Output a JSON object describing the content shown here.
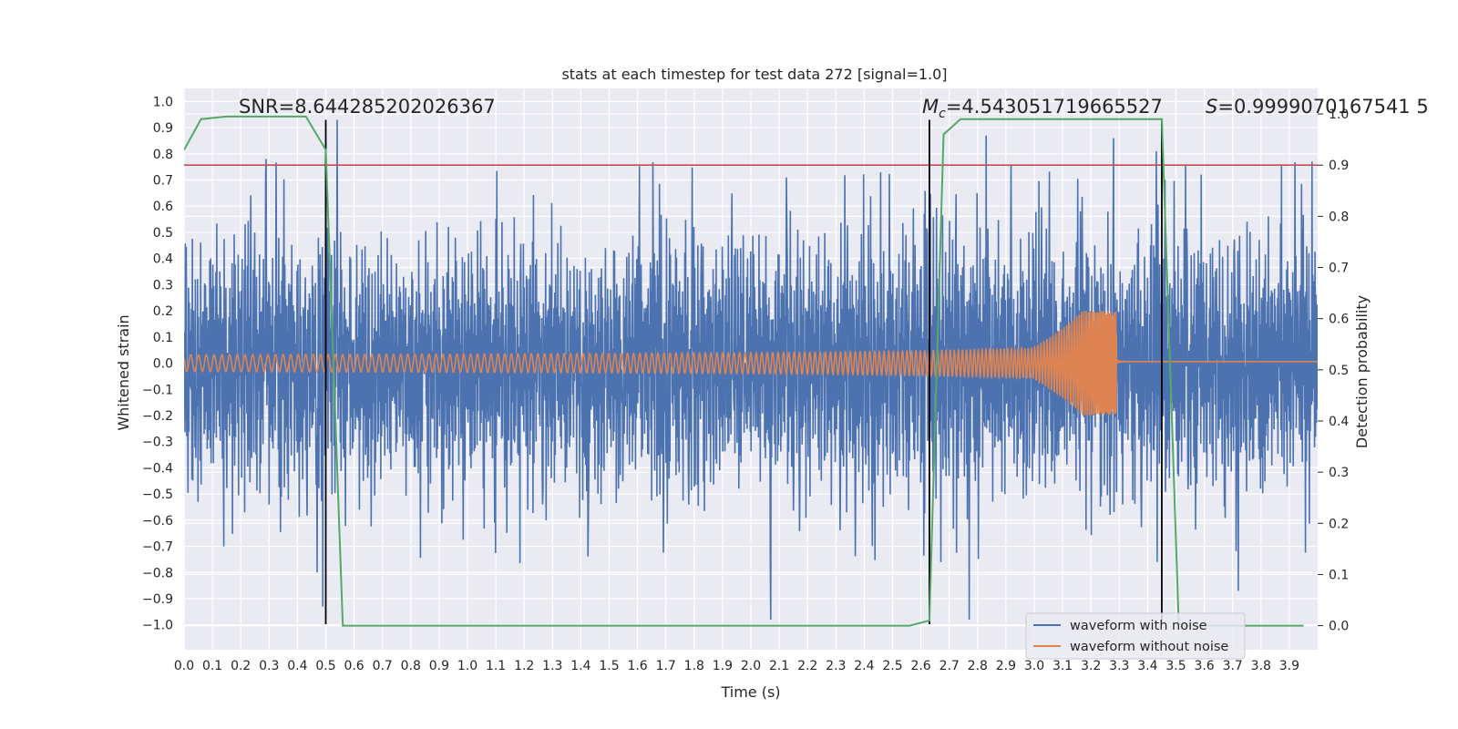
{
  "chart_data": {
    "type": "line",
    "title": "stats at each timestep for test data 272 [signal=1.0]",
    "xlabel": "Time (s)",
    "ylabel": "Whitened strain",
    "y2label": "Detection probability",
    "xlim": [
      0.0,
      4.0
    ],
    "ylim": [
      -1.095,
      1.05
    ],
    "y2lim": [
      -0.047,
      1.05
    ],
    "x_ticks": [
      "0.0",
      "0.1",
      "0.2",
      "0.3",
      "0.4",
      "0.5",
      "0.6",
      "0.7",
      "0.8",
      "0.9",
      "1.0",
      "1.1",
      "1.2",
      "1.3",
      "1.4",
      "1.5",
      "1.6",
      "1.7",
      "1.8",
      "1.9",
      "2.0",
      "2.1",
      "2.2",
      "2.3",
      "2.4",
      "2.5",
      "2.6",
      "2.7",
      "2.8",
      "2.9",
      "3.0",
      "3.1",
      "3.2",
      "3.3",
      "3.4",
      "3.5",
      "3.6",
      "3.7",
      "3.8",
      "3.9"
    ],
    "y_ticks": [
      "1.0",
      "0.9",
      "0.8",
      "0.7",
      "0.6",
      "0.5",
      "0.4",
      "0.3",
      "0.2",
      "0.1",
      "0.0",
      "−0.1",
      "−0.2",
      "−0.3",
      "−0.4",
      "−0.5",
      "−0.6",
      "−0.7",
      "−0.8",
      "−0.9",
      "−1.0"
    ],
    "y2_ticks": [
      "1.0",
      "0.9",
      "0.8",
      "0.7",
      "0.6",
      "0.5",
      "0.4",
      "0.3",
      "0.2",
      "0.1",
      "0.0"
    ],
    "annotations": {
      "snr": "SNR=8.644285202026367",
      "mc_symbol": "M",
      "mc_sub": "c",
      "mc_value": "=4.543051719665527",
      "s_symbol": "S",
      "s_value": "=0.9999070167541 5"
    },
    "threshold": 0.9,
    "vlines": [
      0.5,
      2.63,
      3.45
    ],
    "series": [
      {
        "name": "waveform with noise",
        "color": "#4c72b0",
        "axis": "left",
        "envelope": 0.45,
        "peaks": [
          {
            "x": 0.29,
            "y": 0.78
          },
          {
            "x": 0.5,
            "y": 0.84
          },
          {
            "x": 0.54,
            "y": 0.93
          },
          {
            "x": 0.47,
            "y": -0.8
          },
          {
            "x": 0.49,
            "y": -0.93
          },
          {
            "x": 0.14,
            "y": -0.7
          },
          {
            "x": 2.07,
            "y": -0.98
          },
          {
            "x": 2.77,
            "y": -0.98
          },
          {
            "x": 2.83,
            "y": 0.87
          },
          {
            "x": 3.28,
            "y": 0.86
          },
          {
            "x": 3.98,
            "y": 0.77
          },
          {
            "x": 3.43,
            "y": 0.81
          },
          {
            "x": 3.72,
            "y": -0.87
          },
          {
            "x": 2.67,
            "y": -0.76
          }
        ]
      },
      {
        "name": "waveform without noise",
        "color": "#dd8452",
        "axis": "left",
        "chirp": {
          "start_amp": 0.032,
          "merger_time": 3.29,
          "merger_amp": 0.2,
          "ringdown_amp": 0.006
        }
      },
      {
        "color": "#55a868",
        "axis": "right",
        "x": [
          0.0,
          0.06,
          0.15,
          0.43,
          0.5,
          0.56,
          2.56,
          2.63,
          2.68,
          2.74,
          3.45,
          3.51,
          3.95
        ],
        "y": [
          0.93,
          0.99,
          0.995,
          0.995,
          0.93,
          0.0,
          0.0,
          0.01,
          0.96,
          0.99,
          0.99,
          0.0,
          0.0
        ]
      }
    ],
    "legend_position": "lower-right",
    "grid": true
  }
}
